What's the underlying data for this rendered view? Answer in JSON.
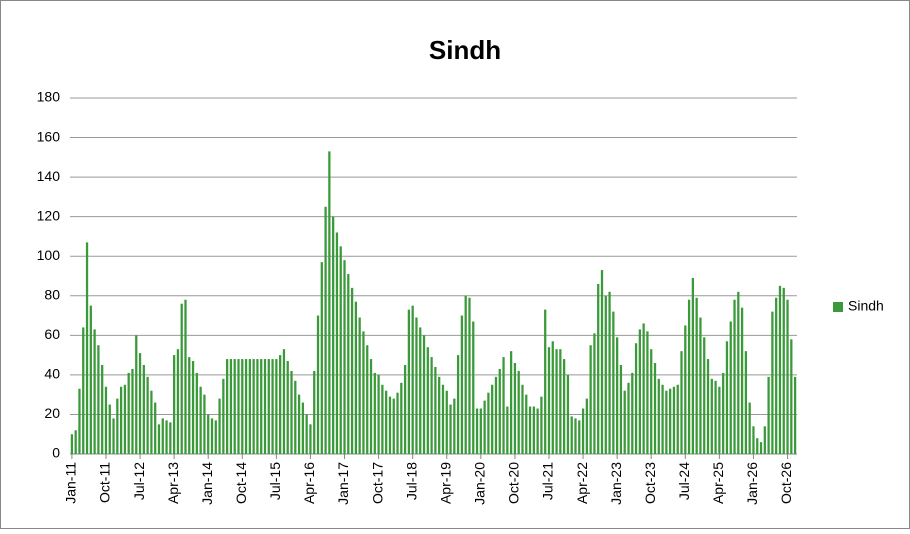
{
  "chart_data": {
    "type": "bar",
    "title": "Sindh",
    "categories": [
      "Jan-11",
      null,
      null,
      null,
      null,
      null,
      null,
      null,
      null,
      "Oct-11",
      null,
      null,
      null,
      null,
      null,
      null,
      null,
      null,
      "Jul-12",
      null,
      null,
      null,
      null,
      null,
      null,
      null,
      null,
      "Apr-13",
      null,
      null,
      null,
      null,
      null,
      null,
      null,
      null,
      "Jan-14",
      null,
      null,
      null,
      null,
      null,
      null,
      null,
      null,
      "Oct-14",
      null,
      null,
      null,
      null,
      null,
      null,
      null,
      null,
      "Jul-15",
      null,
      null,
      null,
      null,
      null,
      null,
      null,
      null,
      "Apr-16",
      null,
      null,
      null,
      null,
      null,
      null,
      null,
      null,
      "Jan-17",
      null,
      null,
      null,
      null,
      null,
      null,
      null,
      null,
      "Oct-17",
      null,
      null,
      null,
      null,
      null,
      null,
      null,
      null,
      "Jul-18",
      null,
      null,
      null,
      null,
      null,
      null,
      null,
      null,
      "Apr-19",
      null,
      null,
      null,
      null,
      null,
      null,
      null,
      null,
      "Jan-20",
      null,
      null,
      null,
      null,
      null,
      null,
      null,
      null,
      "Oct-20",
      null,
      null,
      null,
      null,
      null,
      null,
      null,
      null,
      "Jul-21",
      null,
      null,
      null,
      null,
      null,
      null,
      null,
      null,
      "Apr-22",
      null,
      null,
      null,
      null,
      null,
      null,
      null,
      null,
      "Jan-23",
      null,
      null,
      null,
      null,
      null,
      null,
      null,
      null,
      "Oct-23",
      null,
      null,
      null,
      null,
      null,
      null,
      null,
      null,
      "Jul-24",
      null,
      null,
      null,
      null,
      null,
      null,
      null,
      null,
      "Apr-25",
      null,
      null,
      null,
      null,
      null,
      null,
      null,
      null,
      "Jan-26",
      null,
      null,
      null,
      null,
      null,
      null,
      null,
      null,
      "Oct-26",
      null,
      null
    ],
    "series": [
      {
        "name": "Sindh",
        "color": "#3a9a3a",
        "values": [
          10,
          12,
          33,
          64,
          107,
          75,
          63,
          55,
          45,
          34,
          25,
          18,
          28,
          34,
          35,
          41,
          43,
          60,
          51,
          45,
          39,
          32,
          26,
          15,
          18,
          17,
          16,
          50,
          53,
          76,
          78,
          49,
          47,
          41,
          34,
          30,
          20,
          18,
          17,
          28,
          38,
          48,
          48,
          48,
          48,
          48,
          48,
          48,
          48,
          48,
          48,
          48,
          48,
          48,
          48,
          50,
          53,
          47,
          42,
          37,
          30,
          26,
          20,
          15,
          42,
          70,
          97,
          125,
          153,
          120,
          112,
          105,
          98,
          91,
          84,
          77,
          69,
          62,
          55,
          48,
          41,
          40,
          35,
          32,
          29,
          28,
          31,
          36,
          45,
          73,
          75,
          69,
          64,
          60,
          54,
          49,
          44,
          39,
          35,
          32,
          25,
          28,
          50,
          70,
          80,
          79,
          67,
          23,
          23,
          27,
          31,
          35,
          39,
          43,
          49,
          24,
          52,
          46,
          42,
          35,
          30,
          24,
          24,
          23,
          29,
          73,
          54,
          57,
          53,
          53,
          48,
          40,
          19,
          18,
          17,
          23,
          28,
          55,
          61,
          86,
          93,
          80,
          82,
          72,
          59,
          45,
          32,
          36,
          41,
          56,
          63,
          66,
          62,
          53,
          46,
          38,
          35,
          32,
          33,
          34,
          35,
          52,
          65,
          78,
          89,
          79,
          69,
          59,
          48,
          38,
          37,
          34,
          41,
          57,
          67,
          78,
          82,
          74,
          52,
          26,
          14,
          8,
          6,
          14,
          39,
          72,
          79,
          85,
          84,
          78,
          58,
          39
        ]
      }
    ],
    "ylim": [
      0,
      180
    ],
    "yticks": [
      0,
      20,
      40,
      60,
      80,
      100,
      120,
      140,
      160,
      180
    ],
    "grid": true,
    "legend": "right"
  }
}
